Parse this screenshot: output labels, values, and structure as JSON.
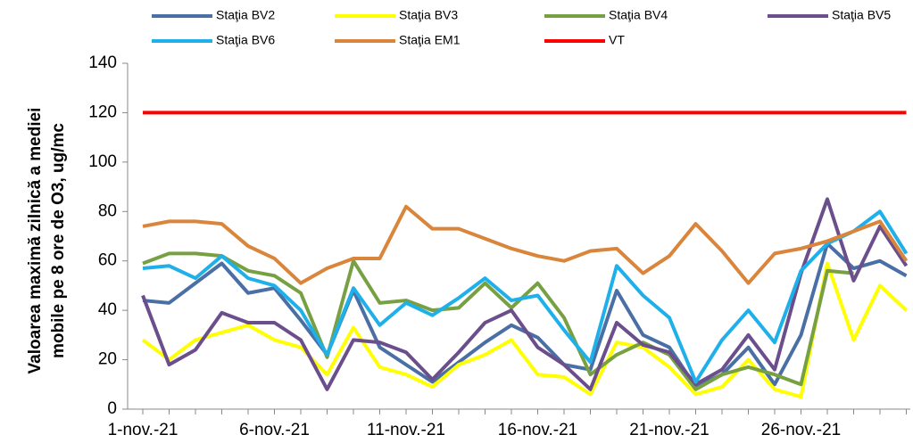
{
  "chart_data": {
    "type": "line",
    "y_label": [
      "Valoarea maximă zilnică a mediei",
      "mobile pe 8 ore de O3, ug/mc"
    ],
    "categories": [
      "1-nov.-21",
      null,
      null,
      null,
      null,
      "6-nov.-21",
      null,
      null,
      null,
      null,
      "11-nov.-21",
      null,
      null,
      null,
      null,
      "16-nov.-21",
      null,
      null,
      null,
      null,
      "21-nov.-21",
      null,
      null,
      null,
      null,
      "26-nov.-21",
      null,
      null,
      null,
      null
    ],
    "ylim": [
      0,
      140
    ],
    "yticks": [
      0,
      20,
      40,
      60,
      80,
      100,
      120,
      140
    ],
    "grid": false,
    "series": [
      {
        "name": "Staţia BV2",
        "color": "#4a6fa5",
        "values": [
          44,
          43,
          51,
          59,
          47,
          49,
          36,
          22,
          48,
          25,
          18,
          11,
          19,
          27,
          34,
          29,
          18,
          16,
          48,
          30,
          25,
          9,
          14,
          25,
          10,
          30,
          67,
          57,
          60,
          54
        ]
      },
      {
        "name": "Staţia BV3",
        "color": "#ffff00",
        "values": [
          28,
          20,
          28,
          31,
          34,
          28,
          25,
          14,
          33,
          17,
          14,
          9,
          18,
          22,
          28,
          14,
          13,
          6,
          27,
          25,
          17,
          6,
          9,
          20,
          8,
          5,
          59,
          28,
          50,
          40
        ]
      },
      {
        "name": "Staţia BV4",
        "color": "#77a043",
        "values": [
          59,
          63,
          63,
          62,
          56,
          54,
          47,
          21,
          60,
          43,
          44,
          40,
          41,
          51,
          41,
          51,
          37,
          14,
          22,
          27,
          22,
          8,
          14,
          17,
          14,
          10,
          56,
          55,
          null,
          null
        ]
      },
      {
        "name": "Staţia BV5",
        "color": "#6b4f8c",
        "values": [
          46,
          18,
          24,
          39,
          35,
          35,
          28,
          8,
          28,
          27,
          23,
          12,
          23,
          35,
          40,
          25,
          18,
          8,
          35,
          26,
          23,
          10,
          16,
          30,
          16,
          55,
          85,
          52,
          74,
          58
        ]
      },
      {
        "name": "Staţia BV6",
        "color": "#1fb0ea",
        "values": [
          57,
          58,
          53,
          62,
          53,
          50,
          40,
          22,
          49,
          34,
          43,
          38,
          45,
          53,
          44,
          46,
          32,
          19,
          58,
          46,
          37,
          11,
          28,
          40,
          27,
          56,
          67,
          72,
          80,
          63
        ]
      },
      {
        "name": "Staţia EM1",
        "color": "#d9853b",
        "values": [
          74,
          76,
          76,
          75,
          66,
          61,
          51,
          57,
          61,
          61,
          82,
          73,
          73,
          69,
          65,
          62,
          60,
          64,
          65,
          55,
          62,
          75,
          64,
          51,
          63,
          65,
          68,
          72,
          76,
          60
        ]
      },
      {
        "name": "VT",
        "color": "#ff0000",
        "values": [
          120,
          120,
          120,
          120,
          120,
          120,
          120,
          120,
          120,
          120,
          120,
          120,
          120,
          120,
          120,
          120,
          120,
          120,
          120,
          120,
          120,
          120,
          120,
          120,
          120,
          120,
          120,
          120,
          120,
          120
        ]
      }
    ]
  }
}
